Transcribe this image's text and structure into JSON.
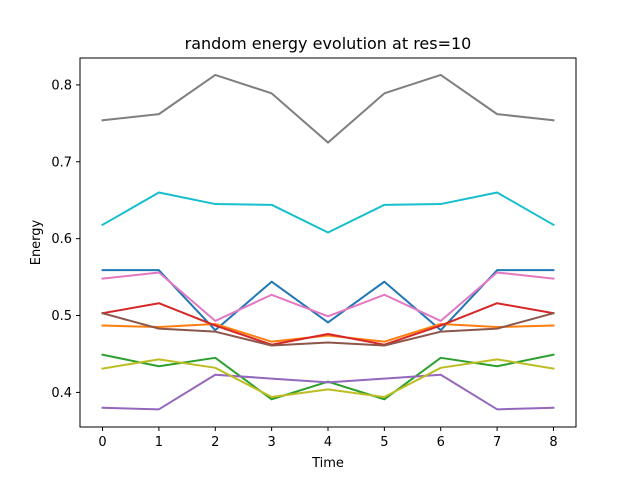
{
  "chart_data": {
    "type": "line",
    "title": "random energy evolution at res=10",
    "xlabel": "Time",
    "ylabel": "Energy",
    "x": [
      0,
      1,
      2,
      3,
      4,
      5,
      6,
      7,
      8
    ],
    "xlim": [
      -0.4,
      8.4
    ],
    "ylim": [
      0.355,
      0.835
    ],
    "xticks": [
      "0",
      "1",
      "2",
      "3",
      "4",
      "5",
      "6",
      "7",
      "8"
    ],
    "yticks": [
      "0.4",
      "0.5",
      "0.6",
      "0.7",
      "0.8"
    ],
    "ytick_values": [
      0.4,
      0.5,
      0.6,
      0.7,
      0.8
    ],
    "grid": false,
    "legend": "none",
    "series": [
      {
        "color": "#1f77b4",
        "values": [
          0.559,
          0.559,
          0.481,
          0.544,
          0.491,
          0.544,
          0.481,
          0.559,
          0.559
        ]
      },
      {
        "color": "#ff7f0e",
        "values": [
          0.487,
          0.485,
          0.489,
          0.466,
          0.474,
          0.466,
          0.489,
          0.485,
          0.487
        ]
      },
      {
        "color": "#2ca02c",
        "values": [
          0.449,
          0.434,
          0.445,
          0.391,
          0.414,
          0.391,
          0.445,
          0.434,
          0.449
        ]
      },
      {
        "color": "#d62728",
        "values": [
          0.503,
          0.516,
          0.487,
          0.462,
          0.476,
          0.462,
          0.487,
          0.516,
          0.503
        ]
      },
      {
        "color": "#9467bd",
        "values": [
          0.38,
          0.378,
          0.423,
          0.418,
          0.413,
          0.418,
          0.423,
          0.378,
          0.38
        ]
      },
      {
        "color": "#8c564b",
        "values": [
          0.503,
          0.483,
          0.479,
          0.461,
          0.465,
          0.461,
          0.479,
          0.483,
          0.503
        ]
      },
      {
        "color": "#e377c2",
        "values": [
          0.548,
          0.556,
          0.493,
          0.527,
          0.499,
          0.527,
          0.493,
          0.556,
          0.548
        ]
      },
      {
        "color": "#7f7f7f",
        "values": [
          0.754,
          0.762,
          0.813,
          0.789,
          0.725,
          0.789,
          0.813,
          0.762,
          0.754
        ]
      },
      {
        "color": "#bcbd22",
        "values": [
          0.431,
          0.443,
          0.432,
          0.394,
          0.404,
          0.394,
          0.432,
          0.443,
          0.431
        ]
      },
      {
        "color": "#17becf",
        "values": [
          0.618,
          0.66,
          0.645,
          0.644,
          0.608,
          0.644,
          0.645,
          0.66,
          0.618
        ]
      }
    ]
  }
}
